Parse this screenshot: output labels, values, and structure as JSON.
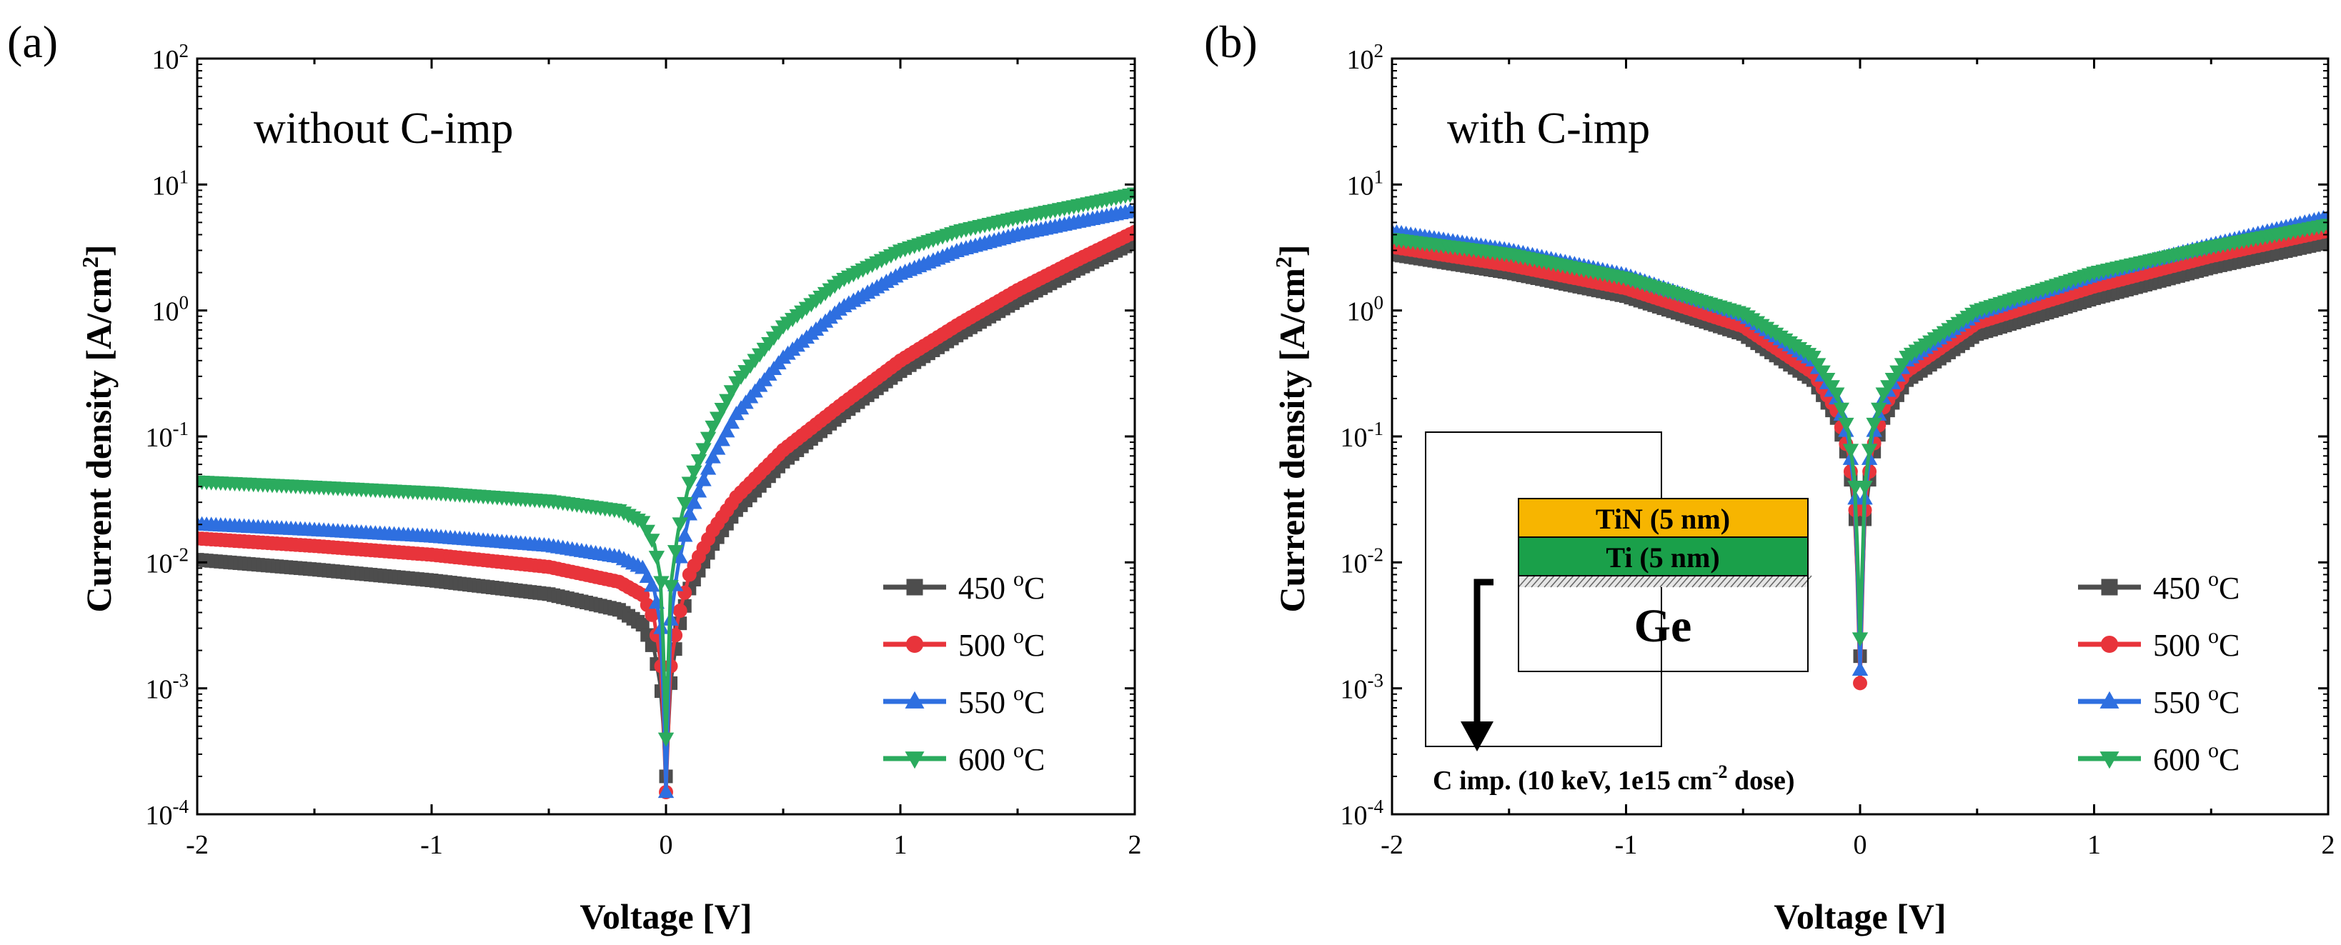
{
  "chart_data": [
    {
      "type": "line",
      "panel_label": "(a)",
      "annotation": "without C-imp",
      "xlabel": "Voltage [V]",
      "ylabel": "Current density [A/cm2]",
      "xlim": [
        -2,
        2
      ],
      "ylim": [
        0.0001,
        100
      ],
      "yscale": "log",
      "x_ticks": [
        -2,
        -1,
        0,
        1,
        2
      ],
      "x_tick_labels": [
        "-2",
        "-1",
        "0",
        "1",
        "2"
      ],
      "y_ticks": [
        0.0001,
        0.001,
        0.01,
        0.1,
        1,
        10,
        100
      ],
      "y_tick_labels": [
        {
          "base": "10",
          "exp": "-4"
        },
        {
          "base": "10",
          "exp": "-3"
        },
        {
          "base": "10",
          "exp": "-2"
        },
        {
          "base": "10",
          "exp": "-1"
        },
        {
          "base": "10",
          "exp": "0"
        },
        {
          "base": "10",
          "exp": "1"
        },
        {
          "base": "10",
          "exp": "2"
        }
      ],
      "legend_position": "bottom-right",
      "series": [
        {
          "name": "450 °C",
          "label_num": "450 ",
          "label_sup": "o",
          "label_unit": "C",
          "color": "#4d4d4d",
          "marker": "square",
          "x": [
            -2,
            -1.5,
            -1,
            -0.5,
            -0.2,
            -0.1,
            -0.05,
            -0.02,
            0,
            0.02,
            0.05,
            0.1,
            0.2,
            0.3,
            0.5,
            0.75,
            1,
            1.25,
            1.5,
            1.75,
            2
          ],
          "y": [
            0.0105,
            0.0088,
            0.0072,
            0.0056,
            0.0042,
            0.0032,
            0.002,
            0.00095,
            0.0002,
            0.0011,
            0.0028,
            0.0062,
            0.014,
            0.026,
            0.063,
            0.15,
            0.33,
            0.65,
            1.2,
            2.1,
            3.5
          ]
        },
        {
          "name": "500 °C",
          "label_num": "500 ",
          "label_sup": "o",
          "label_unit": "C",
          "color": "#e8343b",
          "marker": "circle",
          "x": [
            -2,
            -1.5,
            -1,
            -0.5,
            -0.2,
            -0.1,
            -0.05,
            -0.02,
            0,
            0.02,
            0.05,
            0.1,
            0.2,
            0.3,
            0.5,
            0.75,
            1,
            1.25,
            1.5,
            1.75,
            2
          ],
          "y": [
            0.0155,
            0.0135,
            0.0115,
            0.0092,
            0.007,
            0.0055,
            0.0035,
            0.0015,
            0.00015,
            0.0015,
            0.0035,
            0.008,
            0.018,
            0.033,
            0.078,
            0.18,
            0.4,
            0.78,
            1.45,
            2.5,
            4.2
          ]
        },
        {
          "name": "550 °C",
          "label_num": "550 ",
          "label_sup": "o",
          "label_unit": "C",
          "color": "#2e6fe0",
          "marker": "triangle-up",
          "x": [
            -2,
            -1.5,
            -1,
            -0.5,
            -0.2,
            -0.1,
            -0.05,
            -0.02,
            0,
            0.02,
            0.05,
            0.1,
            0.2,
            0.3,
            0.5,
            0.75,
            1,
            1.25,
            1.5,
            1.75,
            2
          ],
          "y": [
            0.02,
            0.018,
            0.016,
            0.0135,
            0.011,
            0.009,
            0.006,
            0.003,
            0.00015,
            0.0035,
            0.009,
            0.024,
            0.068,
            0.15,
            0.42,
            1.05,
            1.95,
            3.0,
            4.0,
            5.0,
            6.2
          ]
        },
        {
          "name": "600 °C",
          "label_num": "600 ",
          "label_sup": "o",
          "label_unit": "C",
          "color": "#2bab5e",
          "marker": "triangle-down",
          "x": [
            -2,
            -1.5,
            -1,
            -0.5,
            -0.2,
            -0.1,
            -0.05,
            -0.02,
            0,
            0.02,
            0.05,
            0.1,
            0.2,
            0.3,
            0.5,
            0.75,
            1,
            1.25,
            1.5,
            1.75,
            2
          ],
          "y": [
            0.044,
            0.04,
            0.036,
            0.031,
            0.026,
            0.021,
            0.014,
            0.007,
            0.0004,
            0.0065,
            0.017,
            0.043,
            0.12,
            0.27,
            0.75,
            1.75,
            3.0,
            4.3,
            5.5,
            6.8,
            8.5
          ]
        }
      ]
    },
    {
      "type": "line",
      "panel_label": "(b)",
      "annotation": "with C-imp",
      "xlabel": "Voltage [V]",
      "ylabel": "Current density [A/cm2]",
      "xlim": [
        -2,
        2
      ],
      "ylim": [
        0.0001,
        100
      ],
      "yscale": "log",
      "x_ticks": [
        -2,
        -1,
        0,
        1,
        2
      ],
      "x_tick_labels": [
        "-2",
        "-1",
        "0",
        "1",
        "2"
      ],
      "y_ticks": [
        0.0001,
        0.001,
        0.01,
        0.1,
        1,
        10,
        100
      ],
      "y_tick_labels": [
        {
          "base": "10",
          "exp": "-4"
        },
        {
          "base": "10",
          "exp": "-3"
        },
        {
          "base": "10",
          "exp": "-2"
        },
        {
          "base": "10",
          "exp": "-1"
        },
        {
          "base": "10",
          "exp": "0"
        },
        {
          "base": "10",
          "exp": "1"
        },
        {
          "base": "10",
          "exp": "2"
        }
      ],
      "legend_position": "bottom-right",
      "series": [
        {
          "name": "450 °C",
          "label_num": "450 ",
          "label_sup": "o",
          "label_unit": "C",
          "color": "#4d4d4d",
          "marker": "square",
          "x": [
            -2,
            -1.5,
            -1,
            -0.5,
            -0.2,
            -0.1,
            -0.05,
            -0.02,
            0,
            0.02,
            0.05,
            0.1,
            0.2,
            0.5,
            1,
            1.5,
            2
          ],
          "y": [
            2.8,
            2.0,
            1.3,
            0.65,
            0.28,
            0.14,
            0.065,
            0.022,
            0.0018,
            0.022,
            0.065,
            0.14,
            0.28,
            0.65,
            1.25,
            2.2,
            3.5
          ]
        },
        {
          "name": "500 °C",
          "label_num": "500 ",
          "label_sup": "o",
          "label_unit": "C",
          "color": "#e8343b",
          "marker": "circle",
          "x": [
            -2,
            -1.5,
            -1,
            -0.5,
            -0.2,
            -0.1,
            -0.05,
            -0.02,
            0,
            0.02,
            0.05,
            0.1,
            0.2,
            0.5,
            1,
            1.5,
            2
          ],
          "y": [
            3.2,
            2.3,
            1.5,
            0.75,
            0.32,
            0.16,
            0.075,
            0.026,
            0.0011,
            0.026,
            0.075,
            0.17,
            0.33,
            0.8,
            1.55,
            2.7,
            4.3
          ]
        },
        {
          "name": "550 °C",
          "label_num": "550 ",
          "label_sup": "o",
          "label_unit": "C",
          "color": "#2e6fe0",
          "marker": "triangle-up",
          "x": [
            -2,
            -1.5,
            -1,
            -0.5,
            -0.2,
            -0.1,
            -0.05,
            -0.02,
            0,
            0.02,
            0.05,
            0.1,
            0.2,
            0.5,
            1,
            1.5,
            2
          ],
          "y": [
            4.2,
            3.0,
            1.9,
            0.92,
            0.4,
            0.2,
            0.095,
            0.032,
            0.0014,
            0.032,
            0.095,
            0.2,
            0.4,
            0.95,
            1.9,
            3.3,
            5.5
          ]
        },
        {
          "name": "600 °C",
          "label_num": "600 ",
          "label_sup": "o",
          "label_unit": "C",
          "color": "#2bab5e",
          "marker": "triangle-down",
          "x": [
            -2,
            -1.5,
            -1,
            -0.5,
            -0.2,
            -0.1,
            -0.05,
            -0.02,
            0,
            0.02,
            0.05,
            0.1,
            0.2,
            0.5,
            1,
            1.5,
            2
          ],
          "y": [
            3.7,
            2.8,
            1.8,
            0.95,
            0.43,
            0.22,
            0.11,
            0.04,
            0.0025,
            0.04,
            0.11,
            0.22,
            0.43,
            1.0,
            2.0,
            3.2,
            4.8
          ]
        }
      ],
      "inset": {
        "tin_label": "TiN (5 nm)",
        "ti_label": "Ti (5 nm)",
        "ge_label": "Ge",
        "implant_label": "C imp. (10 keV, 1e15 cm",
        "implant_sup": "-2",
        "implant_tail": " dose)",
        "tin_color": "#f7b500",
        "ti_color": "#1aa04a"
      }
    }
  ]
}
